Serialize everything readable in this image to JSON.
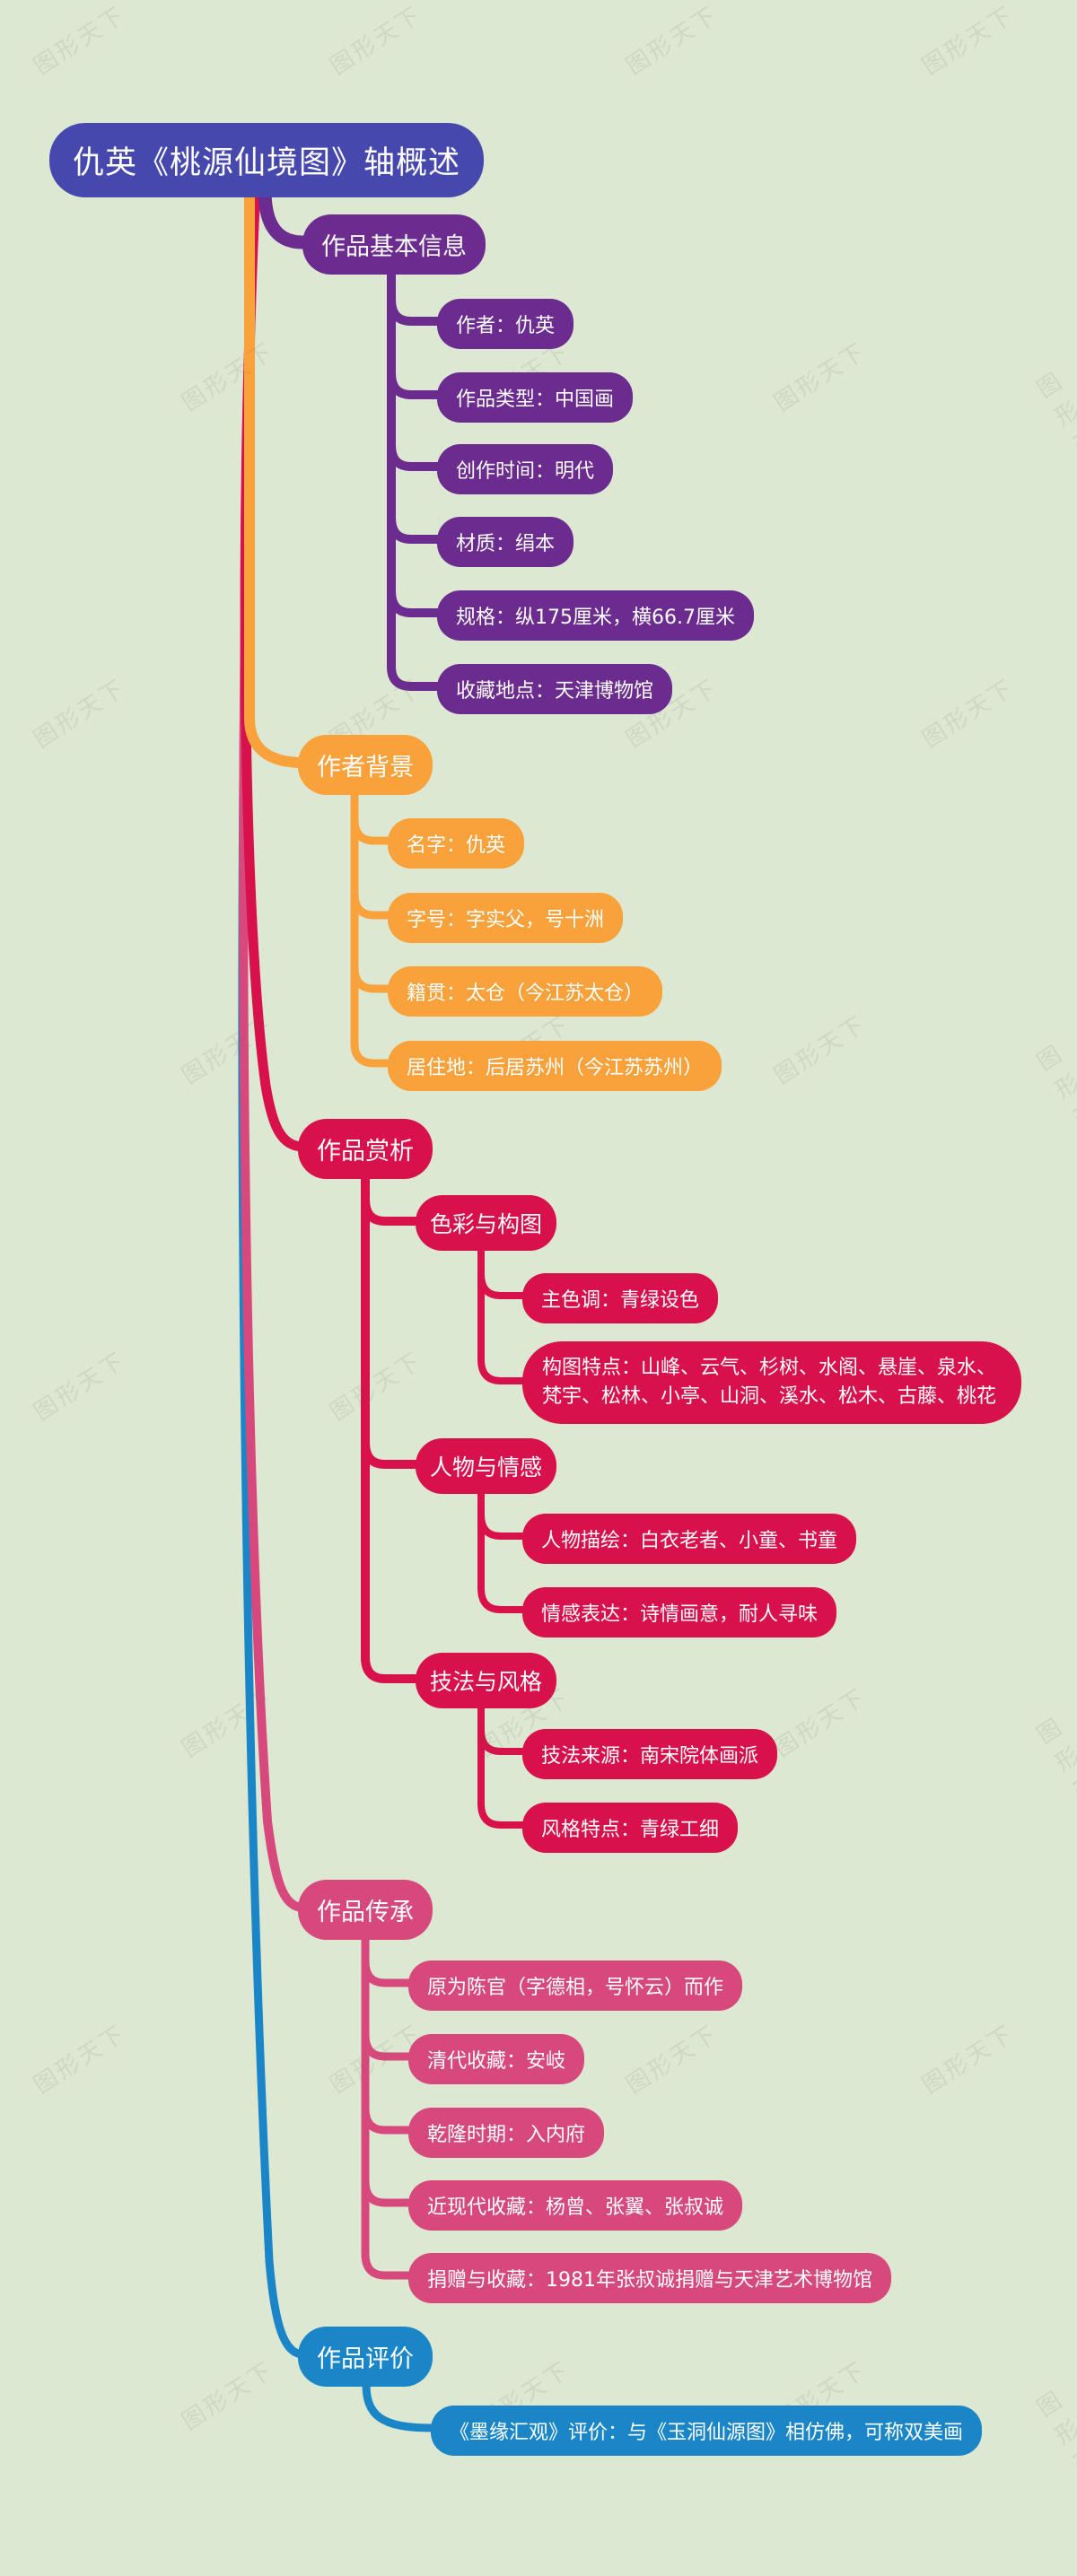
{
  "title": "仇英《桃源仙境图》轴概述",
  "watermark_text": "图形天下",
  "colors": {
    "background": "#dde8d2",
    "root": "#4648ae",
    "text": "#ffffff",
    "branch_basic_info": "#6b2b8f",
    "branch_author": "#f9a23c",
    "branch_analysis": "#d8104b",
    "branch_heritage": "#d7497c",
    "branch_evaluation": "#1a86c8"
  },
  "branches": [
    {
      "label": "作品基本信息",
      "color": "#6b2b8f",
      "children": [
        {
          "label": "作者：仇英"
        },
        {
          "label": "作品类型：中国画"
        },
        {
          "label": "创作时间：明代"
        },
        {
          "label": "材质：绢本"
        },
        {
          "label": "规格：纵175厘米，横66.7厘米"
        },
        {
          "label": "收藏地点：天津博物馆"
        }
      ]
    },
    {
      "label": "作者背景",
      "color": "#f9a23c",
      "children": [
        {
          "label": "名字：仇英"
        },
        {
          "label": "字号：字实父，号十洲"
        },
        {
          "label": "籍贯：太仓（今江苏太仓）"
        },
        {
          "label": "居住地：后居苏州（今江苏苏州）"
        }
      ]
    },
    {
      "label": "作品赏析",
      "color": "#d8104b",
      "children": [
        {
          "label": "色彩与构图",
          "children": [
            {
              "label": "主色调：青绿设色"
            },
            {
              "label": "构图特点：山峰、云气、杉树、水阁、悬崖、泉水、梵宇、松林、小亭、山洞、溪水、松木、古藤、桃花"
            }
          ]
        },
        {
          "label": "人物与情感",
          "children": [
            {
              "label": "人物描绘：白衣老者、小童、书童"
            },
            {
              "label": "情感表达：诗情画意，耐人寻味"
            }
          ]
        },
        {
          "label": "技法与风格",
          "children": [
            {
              "label": "技法来源：南宋院体画派"
            },
            {
              "label": "风格特点：青绿工细"
            }
          ]
        }
      ]
    },
    {
      "label": "作品传承",
      "color": "#d7497c",
      "children": [
        {
          "label": "原为陈官（字德相，号怀云）而作"
        },
        {
          "label": "清代收藏：安岐"
        },
        {
          "label": "乾隆时期：入内府"
        },
        {
          "label": "近现代收藏：杨曾、张翼、张叔诚"
        },
        {
          "label": "捐赠与收藏：1981年张叔诚捐赠与天津艺术博物馆"
        }
      ]
    },
    {
      "label": "作品评价",
      "color": "#1a86c8",
      "children": [
        {
          "label": "《墨缘汇观》评价：与《玉洞仙源图》相仿佛，可称双美画"
        }
      ]
    }
  ]
}
